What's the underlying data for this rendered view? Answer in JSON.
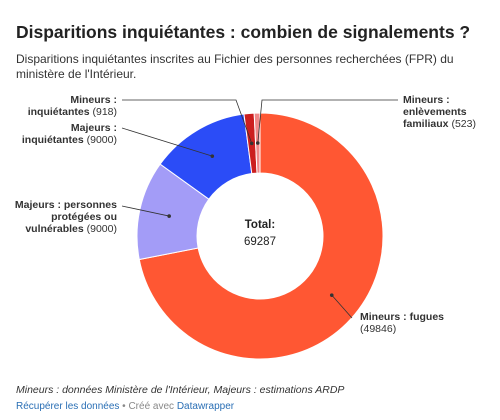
{
  "header": {
    "title": "Disparitions inquiétantes : combien de signalements ?",
    "subtitle": "Disparitions inquiétantes inscrites au Fichier des personnes recherchées (FPR) du ministère de l'Intérieur."
  },
  "chart_data": {
    "type": "pie",
    "center_label": "Total:",
    "total": "69287",
    "slices": [
      {
        "label": "Mineurs : fugues",
        "value": 49846,
        "color": "#ff5733",
        "label_lines": [
          "Mineurs : fugues"
        ],
        "value_text": "(49846)"
      },
      {
        "label": "Majeurs : personnes protégées ou vulnérables",
        "value": 9000,
        "color": "#a39cf7",
        "label_lines": [
          "Majeurs : personnes",
          "protégées ou",
          "vulnérables"
        ],
        "value_text": "(9000)"
      },
      {
        "label": "Majeurs : inquiétantes",
        "value": 9000,
        "color": "#2b4cf7",
        "label_lines": [
          "Majeurs :",
          "inquiétantes"
        ],
        "value_text": "(9000)"
      },
      {
        "label": "Mineurs : inquiétantes",
        "value": 918,
        "color": "#cc1f1f",
        "label_lines": [
          "Mineurs :",
          "inquiétantes"
        ],
        "value_text": "(918)"
      },
      {
        "label": "Mineurs : enlèvements familiaux",
        "value": 523,
        "color": "#f08a8a",
        "label_lines": [
          "Mineurs :",
          "enlèvements",
          "familiaux"
        ],
        "value_text": "(523)"
      }
    ]
  },
  "notes": "Mineurs : données Ministère de l'Intérieur, Majeurs : estimations ARDP",
  "footer": {
    "get_data": "Récupérer les données",
    "separator": " • Créé avec ",
    "tool": "Datawrapper"
  }
}
